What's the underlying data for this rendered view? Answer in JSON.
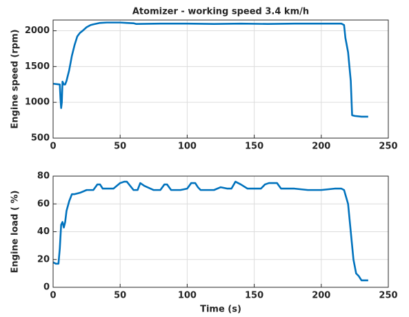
{
  "chart_data": [
    {
      "type": "line",
      "title": "Atomizer - working speed 3.4 km/h",
      "y_label": "Engine speed (rpm)",
      "xlim": [
        0,
        250
      ],
      "xticks": [
        0,
        50,
        100,
        150,
        200,
        250
      ],
      "ylim": [
        500,
        2150
      ],
      "yticks": [
        500,
        1000,
        1500,
        2000
      ],
      "grid": true,
      "series": [
        {
          "color": "#0072bd",
          "x": [
            0,
            5,
            5.5,
            6,
            6.5,
            7,
            8,
            9,
            10,
            12,
            14,
            16,
            18,
            20,
            22,
            25,
            28,
            30,
            35,
            40,
            50,
            55,
            60,
            62,
            80,
            100,
            120,
            140,
            160,
            180,
            200,
            215,
            217,
            218,
            220,
            221,
            222,
            223,
            225,
            230,
            235
          ],
          "values": [
            1260,
            1250,
            1050,
            920,
            1000,
            1290,
            1250,
            1250,
            1300,
            1450,
            1650,
            1800,
            1920,
            1970,
            2000,
            2050,
            2080,
            2090,
            2110,
            2115,
            2115,
            2110,
            2105,
            2095,
            2100,
            2100,
            2095,
            2100,
            2095,
            2100,
            2100,
            2100,
            2080,
            1900,
            1700,
            1500,
            1300,
            820,
            810,
            800,
            800
          ]
        }
      ]
    },
    {
      "type": "line",
      "x_label": "Time (s)",
      "y_label": "Engine load ( %)",
      "xlim": [
        0,
        250
      ],
      "xticks": [
        0,
        50,
        100,
        150,
        200,
        250
      ],
      "ylim": [
        0,
        80
      ],
      "yticks": [
        0,
        20,
        40,
        60,
        80
      ],
      "grid": true,
      "series": [
        {
          "color": "#0072bd",
          "x": [
            0,
            2,
            4,
            5,
            6,
            7,
            8,
            9,
            10,
            12,
            14,
            16,
            20,
            25,
            30,
            33,
            35,
            37,
            45,
            50,
            53,
            55,
            60,
            63,
            65,
            68,
            75,
            80,
            83,
            85,
            88,
            95,
            100,
            103,
            106,
            108,
            110,
            120,
            125,
            130,
            133,
            136,
            140,
            145,
            155,
            158,
            161,
            165,
            167,
            170,
            180,
            190,
            200,
            210,
            215,
            217,
            220,
            222,
            224,
            226,
            228,
            230,
            235
          ],
          "values": [
            18,
            17,
            17,
            28,
            45,
            47,
            43,
            47,
            55,
            62,
            67,
            67,
            68,
            70,
            70,
            74,
            74,
            71,
            71,
            75,
            76,
            76,
            70,
            70,
            75,
            73,
            70,
            70,
            74,
            74,
            70,
            70,
            71,
            75,
            75,
            72,
            70,
            70,
            72,
            71,
            71,
            76,
            74,
            71,
            71,
            74,
            75,
            75,
            75,
            71,
            71,
            70,
            70,
            71,
            71,
            70,
            60,
            40,
            20,
            10,
            8,
            5,
            5
          ]
        }
      ]
    }
  ]
}
